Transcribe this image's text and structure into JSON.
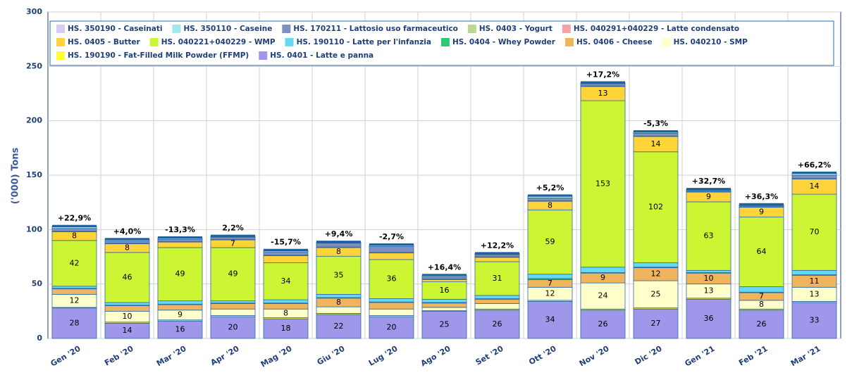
{
  "chart_data": {
    "type": "stacked_bar",
    "y_label": "('000) Tons",
    "categories": [
      "Gen '20",
      "Feb '20",
      "Mar '20",
      "Apr '20",
      "Mag '20",
      "Giu '20",
      "Lug '20",
      "Ago '20",
      "Set '20",
      "Ott '20",
      "Nov '20",
      "Dic '20",
      "Gen '21",
      "Feb '21",
      "Mar '21"
    ],
    "annotations": [
      "+22,9%",
      "+4,0%",
      "-13,3%",
      "2,2%",
      "-15,7%",
      "+9,4%",
      "-2,7%",
      "+16,4%",
      "+12,2%",
      "+5,2%",
      "+17,2%",
      "-5,3%",
      "+32,7%",
      "+36,3%",
      "+66,2%"
    ],
    "ylim": [
      0,
      300
    ],
    "yticks": [
      0,
      50,
      100,
      150,
      200,
      250,
      300
    ],
    "grid": true,
    "legend": "top-left",
    "series": [
      {
        "name": "HS. 0401 - Latte e panna",
        "color": "#9f97ea",
        "values": [
          28,
          14,
          16,
          20,
          18,
          22,
          20,
          25,
          26,
          34,
          26,
          27,
          36,
          26,
          33
        ]
      },
      {
        "name": "HS. 190190 - Fat-Filled Milk Powder (FFMP)",
        "color": "#ffff33",
        "values": [
          0.5,
          1,
          1,
          1,
          1,
          1,
          1,
          0.5,
          1,
          1,
          1,
          1,
          1,
          1,
          1
        ]
      },
      {
        "name": "HS. 040210 - SMP",
        "color": "#ffffcc",
        "values": [
          12,
          10,
          9,
          6,
          8,
          6,
          6,
          3,
          5,
          12,
          24,
          25,
          13,
          8,
          13
        ]
      },
      {
        "name": "HS. 0406 - Cheese",
        "color": "#f0b45c",
        "values": [
          5,
          5,
          5,
          5,
          5,
          8,
          6,
          4,
          4,
          7,
          9,
          12,
          10,
          7,
          11
        ]
      },
      {
        "name": "HS. 0404 - Whey Powder",
        "color": "#2bcc71",
        "values": [
          0.5,
          0.5,
          0.5,
          0.5,
          0.5,
          0.5,
          0.5,
          0.5,
          0.5,
          1,
          0.5,
          0.5,
          0.5,
          0.5,
          0.5
        ]
      },
      {
        "name": "HS. 190110 - Latte per l'infanzia",
        "color": "#66d9f5",
        "values": [
          2,
          2.5,
          3,
          2,
          3,
          3,
          3,
          3,
          3,
          4,
          5,
          4,
          2,
          5,
          4
        ]
      },
      {
        "name": "HS. 040221+040229 - WMP",
        "color": "#ccf533",
        "values": [
          42,
          46,
          49,
          49,
          34,
          35,
          36,
          16,
          31,
          59,
          153,
          102,
          63,
          64,
          70
        ]
      },
      {
        "name": "HS. 0405 - Butter",
        "color": "#ffd43b",
        "values": [
          8,
          8,
          5,
          7,
          6.5,
          8,
          6,
          2,
          4,
          8,
          13,
          14,
          9,
          9,
          14
        ]
      },
      {
        "name": "HS. 040291+040229 - Latte condensato",
        "color": "#f5a3a8",
        "values": [
          0.3,
          0.3,
          0.3,
          0.3,
          0.3,
          0.3,
          0.3,
          0.3,
          0.3,
          0.3,
          0.3,
          0.3,
          0.3,
          0.3,
          0.3
        ]
      },
      {
        "name": "HS. 0403 - Yogurt",
        "color": "#b8d98f",
        "values": [
          0.2,
          0.2,
          0.2,
          0.2,
          0.2,
          0.2,
          0.2,
          0.2,
          0.2,
          0.2,
          0.2,
          0.2,
          0.2,
          0.2,
          0.2
        ]
      },
      {
        "name": "HS. 170211 - Lattosio uso farmaceutico",
        "color": "#7f8fc0",
        "values": [
          2.5,
          2,
          2,
          2,
          3,
          3.5,
          5.5,
          2,
          2,
          2.5,
          2,
          2.5,
          1,
          1,
          3
        ]
      },
      {
        "name": "HS. 350110 - Caseine",
        "color": "#a0e8ee",
        "values": [
          1.5,
          1,
          1,
          0.5,
          1,
          0.5,
          1,
          1,
          0.5,
          1.5,
          0.5,
          1,
          0.5,
          0.5,
          1.5
        ]
      },
      {
        "name": "HS. 350190 - Caseinati",
        "color": "#d6ccf5",
        "values": [
          0.5,
          0.5,
          0.5,
          0.5,
          0.5,
          0.5,
          0.5,
          0.5,
          0.5,
          0.5,
          0.5,
          0.5,
          0.5,
          0.5,
          0.5
        ]
      }
    ]
  }
}
